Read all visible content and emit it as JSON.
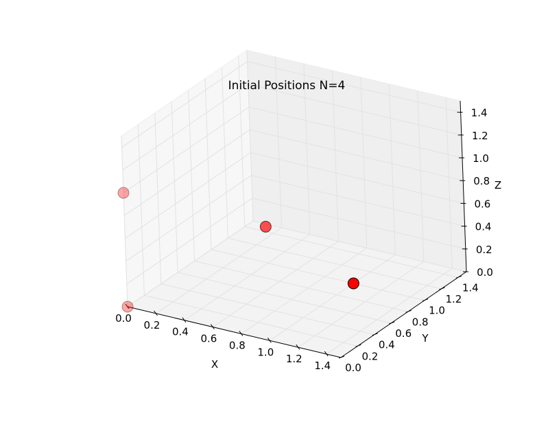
{
  "chart_data": {
    "type": "scatter",
    "projection": "3d",
    "title": "Initial Positions N=4",
    "xlabel": "X",
    "ylabel": "Y",
    "zlabel": "Z",
    "xlim": [
      0,
      1.5
    ],
    "ylim": [
      0,
      1.5
    ],
    "zlim": [
      0,
      1.5
    ],
    "grid": true,
    "x_ticks": [
      "0.0",
      "0.2",
      "0.4",
      "0.6",
      "0.8",
      "1.0",
      "1.2",
      "1.4"
    ],
    "y_ticks": [
      "0.0",
      "0.2",
      "0.4",
      "0.6",
      "0.8",
      "1.0",
      "1.2",
      "1.4"
    ],
    "z_ticks": [
      "0.0",
      "0.2",
      "0.4",
      "0.6",
      "0.8",
      "1.0",
      "1.2",
      "1.4"
    ],
    "marker_color": "#ff0000",
    "points": [
      {
        "x": 0.0,
        "y": 0.0,
        "z": 0.0
      },
      {
        "x": 0.0,
        "y": 0.0,
        "z": 1.0
      },
      {
        "x": 1.0,
        "y": 0.0,
        "z": 1.0
      },
      {
        "x": 1.0,
        "y": 1.0,
        "z": 0.0
      }
    ]
  }
}
